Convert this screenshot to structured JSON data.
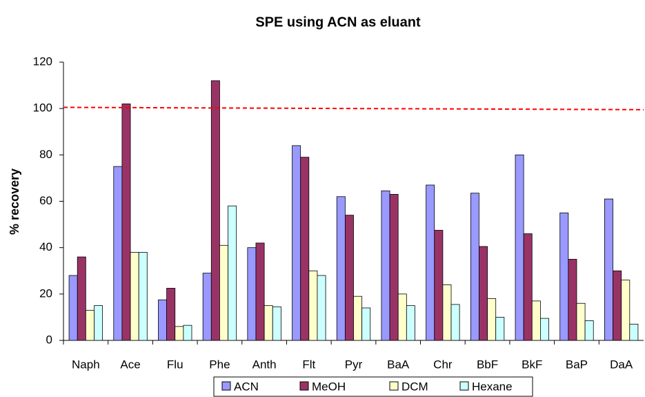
{
  "chart_data": {
    "type": "bar",
    "title": "SPE using ACN as eluant",
    "y_label": "% recovery",
    "categories": [
      "Naph",
      "Ace",
      "Flu",
      "Phe",
      "Anth",
      "Flt",
      "Pyr",
      "BaA",
      "Chr",
      "BbF",
      "BkF",
      "BaP",
      "DaA"
    ],
    "series": [
      {
        "name": "ACN",
        "color": "#9999ff",
        "values": [
          28,
          75,
          17.5,
          29,
          40,
          84,
          62,
          64.5,
          67,
          63.5,
          80,
          55,
          61
        ]
      },
      {
        "name": "MeOH",
        "color": "#993366",
        "values": [
          36,
          102,
          22.5,
          112,
          42,
          79,
          54,
          63,
          47.5,
          40.5,
          46,
          35,
          30
        ]
      },
      {
        "name": "DCM",
        "color": "#ffffcc",
        "values": [
          13,
          38,
          6,
          41,
          15,
          30,
          19,
          20,
          24,
          18,
          17,
          16,
          26
        ]
      },
      {
        "name": "Hexane",
        "color": "#ccffff",
        "values": [
          15,
          38,
          6.5,
          58,
          14.5,
          28,
          14,
          15,
          15.5,
          10,
          9.5,
          8.5,
          7
        ]
      }
    ],
    "reference_line": {
      "values": [
        100.5,
        99.5
      ],
      "color": "#ff0000"
    },
    "ylim": [
      0,
      120
    ],
    "yticks": [
      0,
      20,
      40,
      60,
      80,
      100,
      120
    ],
    "grid": false
  }
}
